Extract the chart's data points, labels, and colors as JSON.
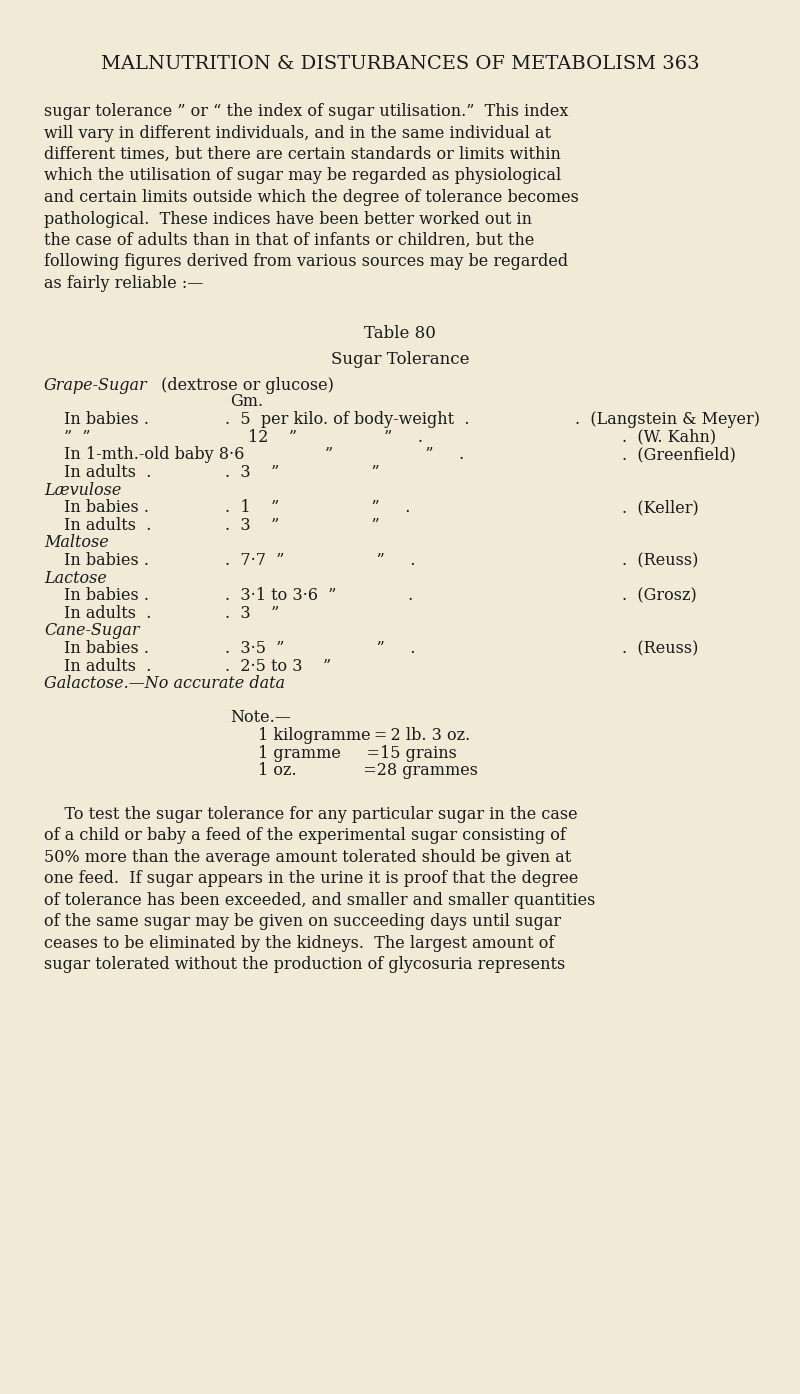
{
  "bg_color": "#f0ead6",
  "text_color": "#1a1a1a",
  "page_width": 8.0,
  "page_height": 13.94,
  "header": "MALNUTRITION & DISTURBANCES OF METABOLISM 363",
  "table_title": "Table 80",
  "table_subtitle": "Sugar Tolerance",
  "note_title": "Note.—",
  "note_lines": [
    "1 kilogramme = 2 lb. 3 oz.",
    "1 gramme     =15 grains",
    "1 oz.             =28 grammes"
  ],
  "intro_lines": [
    "sugar tolerance ” or “ the index of sugar utilisation.”  This index",
    "will vary in different individuals, and in the same individual at",
    "different times, but there are certain standards or limits within",
    "which the utilisation of sugar may be regarded as physiological",
    "and certain limits outside which the degree of tolerance becomes",
    "pathological.  These indices have been better worked out in",
    "the case of adults than in that of infants or children, but the",
    "following figures derived from various sources may be regarded",
    "as fairly reliable :—"
  ],
  "closing_lines": [
    "    To test the sugar tolerance for any particular sugar in the case",
    "of a child or baby a feed of the experimental sugar consisting of",
    "50% more than the average amount tolerated should be given at",
    "one feed.  If sugar appears in the urine it is proof that the degree",
    "of tolerance has been exceeded, and smaller and smaller quantities",
    "of the same sugar may be given on succeeding days until sugar",
    "ceases to be eliminated by the kidneys.  The largest amount of",
    "sugar tolerated without the production of glycosuria represents"
  ]
}
